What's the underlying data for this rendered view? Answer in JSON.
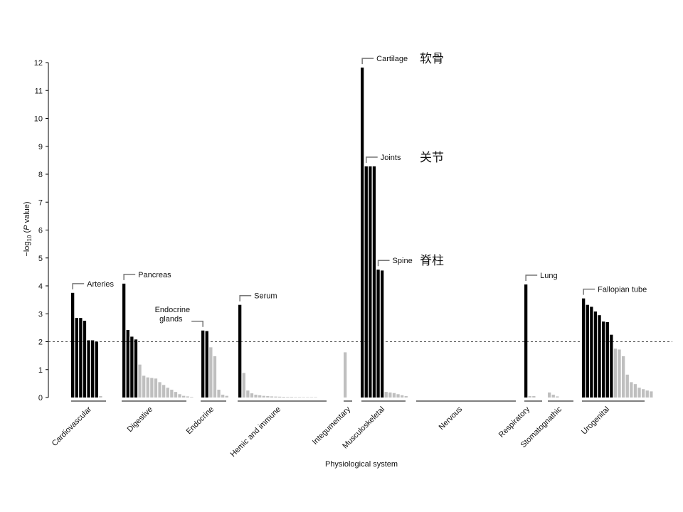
{
  "chart_data": {
    "type": "bar",
    "title": "",
    "xlabel": "Physiological system",
    "ylabel": "−log10 (P value)",
    "ylabel_parts": {
      "prefix": "−log",
      "sub": "10",
      "open": " (",
      "italic": "P",
      "rest": " value)"
    },
    "ylim": [
      0,
      12
    ],
    "yticks": [
      "0",
      "1",
      "2",
      "3",
      "4",
      "5",
      "6",
      "7",
      "8",
      "9",
      "10",
      "11",
      "12"
    ],
    "threshold": 2,
    "colors": {
      "significant": "#000000",
      "nonsignificant": "#bfbfbf",
      "threshold": "#555555"
    },
    "groups": [
      {
        "name": "Cardiovascular",
        "values": [
          3.75,
          2.85,
          2.85,
          2.75,
          2.05,
          2.05,
          2.0,
          0.05
        ]
      },
      {
        "name": "Digestive",
        "values": [
          4.08,
          2.42,
          2.18,
          2.08,
          1.18,
          0.78,
          0.72,
          0.7,
          0.68,
          0.55,
          0.45,
          0.35,
          0.28,
          0.2,
          0.12,
          0.06,
          0.04,
          0.02
        ]
      },
      {
        "name": "Endocrine",
        "values": [
          2.4,
          2.38,
          1.8,
          1.48,
          0.28,
          0.1,
          0.06
        ]
      },
      {
        "name": "Hemic and immune",
        "values": [
          3.32,
          0.88,
          0.25,
          0.15,
          0.1,
          0.08,
          0.06,
          0.05,
          0.04,
          0.035,
          0.03,
          0.025,
          0.02,
          0.02,
          0.015,
          0.015,
          0.01,
          0.01,
          0.01,
          0.01
        ]
      },
      {
        "name": "Integumentary",
        "values": [
          1.62
        ]
      },
      {
        "name": "Musculoskeletal",
        "values": [
          11.82,
          8.28,
          8.28,
          8.28,
          4.58,
          4.55,
          0.2,
          0.18,
          0.16,
          0.12,
          0.08,
          0.05
        ]
      },
      {
        "name": "Nervous",
        "values": []
      },
      {
        "name": "Respiratory",
        "values": [
          4.05,
          0.05,
          0.05
        ]
      },
      {
        "name": "Stomatognathic",
        "values": [
          0.18,
          0.1,
          0.04
        ]
      },
      {
        "name": "Urogenital",
        "values": [
          3.55,
          3.32,
          3.25,
          3.08,
          2.95,
          2.72,
          2.7,
          2.25,
          1.75,
          1.72,
          1.48,
          0.82,
          0.55,
          0.48,
          0.35,
          0.3,
          0.25,
          0.22
        ]
      }
    ],
    "annotations": [
      {
        "text": "Arteries",
        "group": 0,
        "bar": 0
      },
      {
        "text": "Pancreas",
        "group": 1,
        "bar": 0
      },
      {
        "text": "Endocrine",
        "text2": "glands",
        "group": 2,
        "bar": 0
      },
      {
        "text": "Serum",
        "group": 3,
        "bar": 0
      },
      {
        "text": "Cartilage",
        "group": 5,
        "bar": 0,
        "chinese": "软骨"
      },
      {
        "text": "Joints",
        "group": 5,
        "bar": 1,
        "chinese": "关节"
      },
      {
        "text": "Spine",
        "group": 5,
        "bar": 4,
        "chinese": "脊柱"
      },
      {
        "text": "Lung",
        "group": 7,
        "bar": 0
      },
      {
        "text": "Fallopian tube",
        "group": 9,
        "bar": 0
      }
    ]
  }
}
